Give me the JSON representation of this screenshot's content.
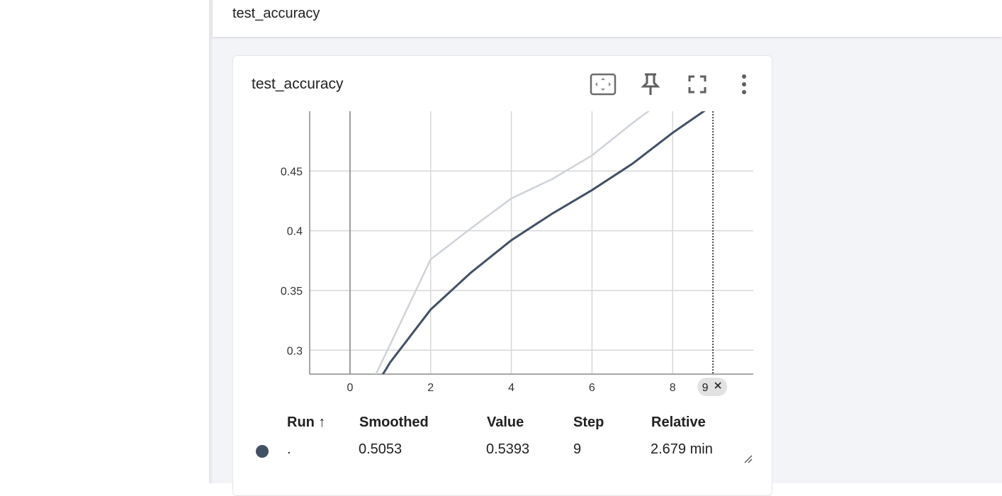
{
  "group_header": {
    "title": "test_accuracy"
  },
  "card": {
    "title": "test_accuracy",
    "icons": [
      "fit-domain-icon",
      "pin-icon",
      "fullscreen-icon",
      "more-vert-icon"
    ]
  },
  "chart_data": {
    "type": "line",
    "title": "test_accuracy",
    "xlabel": "",
    "ylabel": "",
    "xlim": [
      -1,
      10
    ],
    "ylim": [
      0.28,
      0.5
    ],
    "x_ticks": [
      "0",
      "2",
      "4",
      "6",
      "8"
    ],
    "y_ticks": [
      "0.3",
      "0.35",
      "0.4",
      "0.45"
    ],
    "y_tick_values": [
      0.3,
      0.35,
      0.4,
      0.45
    ],
    "x_tick_values": [
      0,
      2,
      4,
      6,
      8
    ],
    "grid": true,
    "hover_step": 9,
    "hover_label": "9",
    "series": [
      {
        "role": "raw",
        "color": "#cfd3da",
        "x": [
          0,
          1,
          2,
          3,
          4,
          5,
          6,
          7,
          8,
          9
        ],
        "values": [
          0.235,
          0.305,
          0.376,
          0.402,
          0.427,
          0.443,
          0.463,
          0.49,
          0.515,
          0.5393
        ]
      },
      {
        "role": "smoothed",
        "color": "#425066",
        "x": [
          0,
          1,
          2,
          3,
          4,
          5,
          6,
          7,
          8,
          9
        ],
        "values": [
          0.235,
          0.29,
          0.334,
          0.365,
          0.392,
          0.414,
          0.434,
          0.456,
          0.482,
          0.5053
        ]
      }
    ]
  },
  "table": {
    "headers": {
      "run": "Run ↑",
      "smoothed": "Smoothed",
      "value": "Value",
      "step": "Step",
      "relative": "Relative"
    },
    "row": {
      "run": ".",
      "smoothed": "0.5053",
      "value": "0.5393",
      "step": "9",
      "relative": "2.679 min",
      "color": "#425066"
    }
  }
}
